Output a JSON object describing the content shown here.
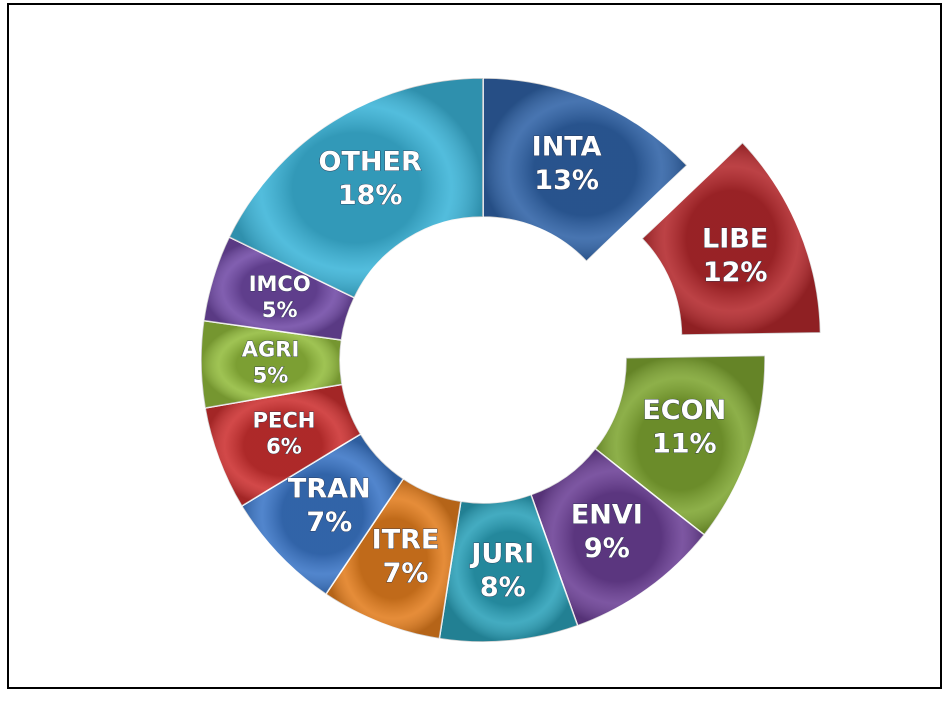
{
  "chart_data": {
    "type": "donut",
    "categories": [
      "INTA",
      "LIBE",
      "ECON",
      "ENVI",
      "JURI",
      "ITRE",
      "TRAN",
      "PECH",
      "AGRI",
      "IMCO",
      "OTHER"
    ],
    "values": [
      13,
      12,
      11,
      9,
      8,
      7,
      7,
      6,
      5,
      5,
      18
    ],
    "value_labels": [
      "13%",
      "12%",
      "11%",
      "9%",
      "8%",
      "7%",
      "7%",
      "6%",
      "5%",
      "5%",
      "18%"
    ],
    "colors": [
      "#2f62a6",
      "#b3282c",
      "#7ea531",
      "#6b3f95",
      "#2aa0b8",
      "#e27d1e",
      "#3a75c6",
      "#cc3030",
      "#92bb3c",
      "#7049a5",
      "#3bb4d8"
    ],
    "explode": [
      false,
      true,
      false,
      false,
      false,
      false,
      false,
      false,
      false,
      false,
      false
    ]
  }
}
